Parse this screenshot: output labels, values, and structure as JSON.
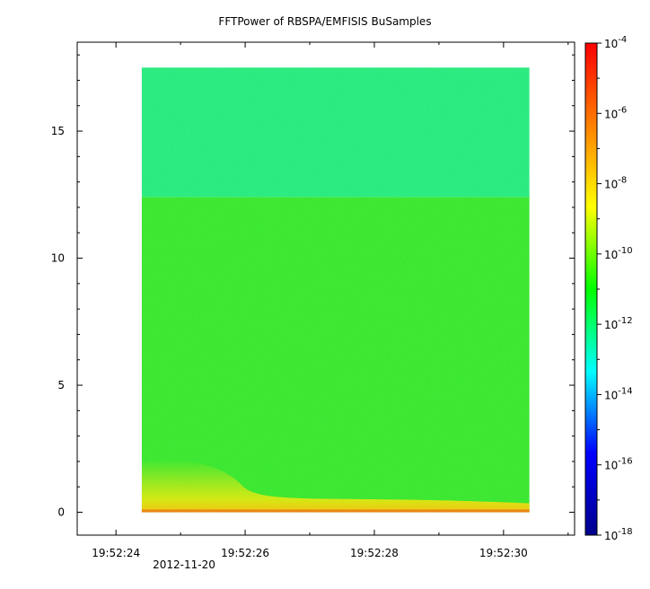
{
  "chart_data": {
    "type": "heatmap",
    "title": "FFTPower of RBSPA/EMFISIS  BuSamples",
    "x_axis": {
      "label": "",
      "date_label": "2012-11-20",
      "ticks": [
        "19:52:24",
        "19:52:26",
        "19:52:28",
        "19:52:30"
      ],
      "range_seconds": [
        23.4,
        31.1
      ]
    },
    "y_axis": {
      "label": "",
      "ticks": [
        "0",
        "5",
        "10",
        "15"
      ],
      "range": [
        -0.9,
        18.5
      ]
    },
    "data_extent": {
      "x_seconds": [
        24.4,
        30.4
      ],
      "y": [
        0,
        17.5
      ]
    },
    "colorbar": {
      "scale": "log",
      "range": [
        1e-18,
        0.0001
      ],
      "ticks": [
        {
          "base": "10",
          "exp": "-4"
        },
        {
          "base": "10",
          "exp": "-6"
        },
        {
          "base": "10",
          "exp": "-8"
        },
        {
          "base": "10",
          "exp": "-10"
        },
        {
          "base": "10",
          "exp": "-12"
        },
        {
          "base": "10",
          "exp": "-14"
        },
        {
          "base": "10",
          "exp": "-16"
        },
        {
          "base": "10",
          "exp": "-18"
        }
      ],
      "colors": [
        "#00008b",
        "#0000ff",
        "#00ffff",
        "#00ff00",
        "#ffff00",
        "#ff8000",
        "#ff0000"
      ]
    },
    "regions": [
      {
        "name": "upper band",
        "y": [
          12.4,
          17.5
        ],
        "level": 1e-12,
        "color": "#1ef07a"
      },
      {
        "name": "lower band",
        "y": [
          0.0,
          12.4
        ],
        "level": 1e-10,
        "color": "#31ec25"
      },
      {
        "name": "low-frequency enhancement",
        "y": [
          0.0,
          2.0
        ],
        "level": 1e-08,
        "color": "#f2f000"
      }
    ]
  }
}
